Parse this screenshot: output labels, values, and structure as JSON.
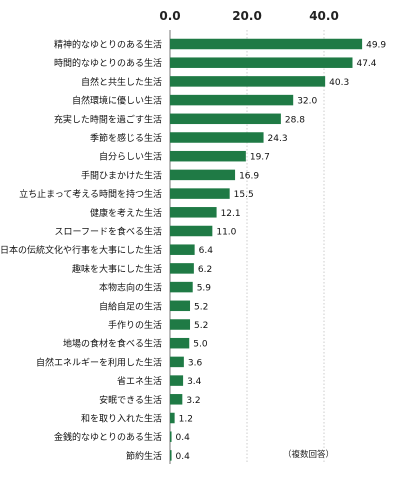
{
  "chart_data": {
    "type": "bar",
    "orientation": "horizontal",
    "categories": [
      "精神的なゆとりのある生活",
      "時間的なゆとりのある生活",
      "自然と共生した生活",
      "自然環境に優しい生活",
      "充実した時間を過ごす生活",
      "季節を感じる生活",
      "自分らしい生活",
      "手間ひまかけた生活",
      "立ち止まって考える時間を持つ生活",
      "健康を考えた生活",
      "スローフードを食べる生活",
      "日本の伝統文化や行事を大事にした生活",
      "趣味を大事にした生活",
      "本物志向の生活",
      "自給自足の生活",
      "手作りの生活",
      "地場の食材を食べる生活",
      "自然エネルギーを利用した生活",
      "省エネ生活",
      "安眠できる生活",
      "和を取り入れた生活",
      "金銭的なゆとりのある生活",
      "節約生活"
    ],
    "values": [
      49.9,
      47.4,
      40.3,
      32.0,
      28.8,
      24.3,
      19.7,
      16.9,
      15.5,
      12.1,
      11.0,
      6.4,
      6.2,
      5.9,
      5.2,
      5.2,
      5.0,
      3.6,
      3.4,
      3.2,
      1.2,
      0.4,
      0.4
    ],
    "value_labels": [
      "49.9",
      "47.4",
      "40.3",
      "32.0",
      "28.8",
      "24.3",
      "19.7",
      "16.9",
      "15.5",
      "12.1",
      "11.0",
      "6.4",
      "6.2",
      "5.9",
      "5.2",
      "5.2",
      "5.0",
      "3.6",
      "3.4",
      "3.2",
      "1.2",
      "0.4",
      "0.4"
    ],
    "xticks": [
      "0.0",
      "20.0",
      "40.0"
    ],
    "xtick_values": [
      0,
      20,
      40
    ],
    "xlim": [
      0,
      50
    ],
    "grid": true,
    "note": "（複数回答）",
    "bar_color": "#1f7a45"
  }
}
